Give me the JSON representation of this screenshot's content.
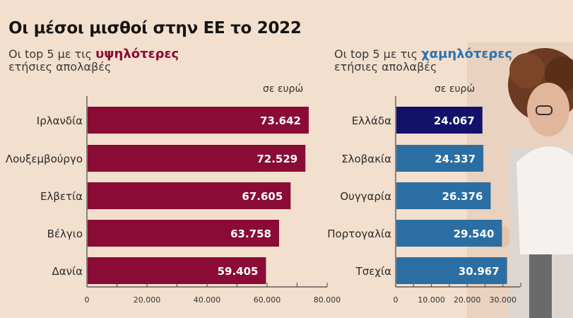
{
  "title": "Οι μέσοι μισθοί στην ΕΕ το 2022",
  "left_panel": {
    "prefix": "Οι top 5 με τις ",
    "highlight": "υψηλότερες",
    "line2": "ετήσιες απολαβές",
    "unit": "σε ευρώ"
  },
  "right_panel": {
    "prefix": "Οι top 5 με τις ",
    "highlight": "χαμηλότερες",
    "line2": "ετήσιες απολαβές",
    "unit": "σε ευρώ"
  },
  "colors": {
    "highest": "#8a0b35",
    "lowest": "#2a6ea3",
    "greece": "#12126a",
    "background": "#f3dfcd"
  },
  "chart_data": [
    {
      "type": "bar",
      "orientation": "horizontal",
      "title": "Οι top 5 με τις υψηλότερες ετήσιες απολαβές",
      "unit": "σε ευρώ",
      "categories": [
        "Ιρλανδία",
        "Λουξεμβούργο",
        "Ελβετία",
        "Βέλγιο",
        "Δανία"
      ],
      "values": [
        73642,
        72529,
        67605,
        63758,
        59405
      ],
      "value_labels": [
        "73.642",
        "72.529",
        "67.605",
        "63.758",
        "59.405"
      ],
      "xlim": [
        0,
        80000
      ],
      "ticks": [
        0,
        20000,
        40000,
        60000,
        80000
      ],
      "tick_labels": [
        "0",
        "20.000",
        "40.000",
        "60.000",
        "80.000"
      ]
    },
    {
      "type": "bar",
      "orientation": "horizontal",
      "title": "Οι top 5 με τις χαμηλότερες ετήσιες απολαβές",
      "unit": "σε ευρώ",
      "categories": [
        "Ελλάδα",
        "Σλοβακία",
        "Ουγγαρία",
        "Πορτογαλία",
        "Τσεχία"
      ],
      "values": [
        24067,
        24337,
        26376,
        29540,
        30967
      ],
      "value_labels": [
        "24.067",
        "24.337",
        "26.376",
        "29.540",
        "30.967"
      ],
      "xlim": [
        0,
        35000
      ],
      "ticks": [
        0,
        10000,
        20000,
        30000
      ],
      "tick_labels": [
        "0",
        "10.000",
        "20.000",
        "30.000"
      ]
    }
  ]
}
